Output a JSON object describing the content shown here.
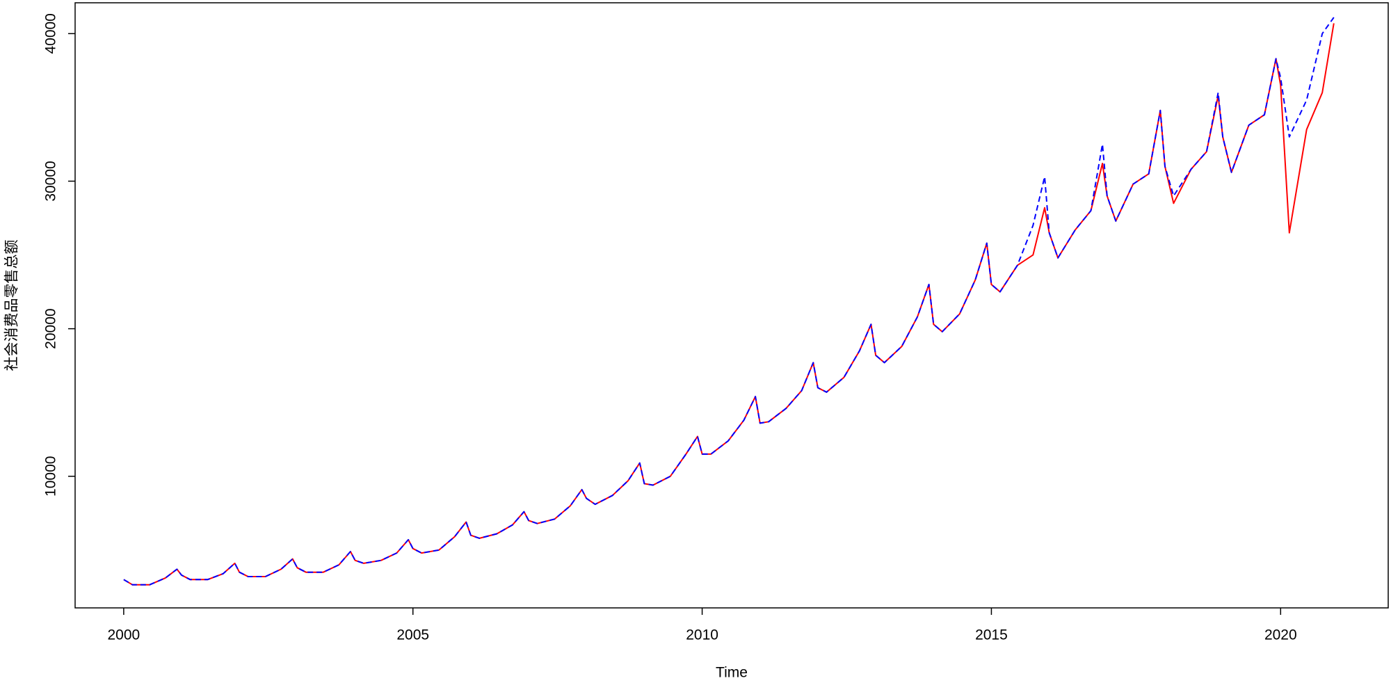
{
  "chart_data": {
    "type": "line",
    "x_label": "Time",
    "y_label": "社会消费品零售总额",
    "x": [
      2000,
      2000.15,
      2000.45,
      2000.72,
      2000.92,
      2001,
      2001.15,
      2001.45,
      2001.72,
      2001.92,
      2002,
      2002.15,
      2002.45,
      2002.72,
      2002.92,
      2003,
      2003.15,
      2003.45,
      2003.72,
      2003.92,
      2004,
      2004.15,
      2004.45,
      2004.72,
      2004.92,
      2005,
      2005.15,
      2005.45,
      2005.72,
      2005.92,
      2006,
      2006.15,
      2006.45,
      2006.72,
      2006.92,
      2007,
      2007.15,
      2007.45,
      2007.72,
      2007.92,
      2008,
      2008.15,
      2008.45,
      2008.72,
      2008.92,
      2009,
      2009.15,
      2009.45,
      2009.72,
      2009.92,
      2010,
      2010.15,
      2010.45,
      2010.72,
      2010.92,
      2011,
      2011.15,
      2011.45,
      2011.72,
      2011.92,
      2012,
      2012.15,
      2012.45,
      2012.72,
      2012.92,
      2013,
      2013.15,
      2013.45,
      2013.72,
      2013.92,
      2014,
      2014.15,
      2014.45,
      2014.72,
      2014.92,
      2015,
      2015.15,
      2015.45,
      2015.72,
      2015.92,
      2016,
      2016.15,
      2016.45,
      2016.72,
      2016.92,
      2017,
      2017.15,
      2017.45,
      2017.72,
      2017.92,
      2018,
      2018.15,
      2018.45,
      2018.72,
      2018.92,
      2019,
      2019.15,
      2019.45,
      2019.72,
      2019.92,
      2020,
      2020.15,
      2020.45,
      2020.72,
      2020.92
    ],
    "series": [
      {
        "color": "#ff0000",
        "dash": false,
        "values": [
          3000,
          2650,
          2650,
          3100,
          3700,
          3300,
          3000,
          3000,
          3400,
          4100,
          3500,
          3200,
          3200,
          3700,
          4400,
          3800,
          3500,
          3500,
          4000,
          4900,
          4300,
          4100,
          4300,
          4800,
          5700,
          5100,
          4800,
          5000,
          5900,
          6900,
          6000,
          5800,
          6100,
          6700,
          7600,
          7000,
          6800,
          7100,
          8000,
          9100,
          8500,
          8100,
          8700,
          9700,
          10900,
          9500,
          9400,
          10000,
          11500,
          12700,
          11500,
          11500,
          12400,
          13800,
          15400,
          13600,
          13700,
          14600,
          15800,
          17700,
          16000,
          15700,
          16700,
          18500,
          20300,
          18200,
          17700,
          18800,
          20800,
          23000,
          20300,
          19800,
          21000,
          23300,
          25800,
          23000,
          22500,
          24300,
          25000,
          28200,
          26500,
          24800,
          26700,
          28000,
          31200,
          29000,
          27300,
          29800,
          30500,
          34800,
          31000,
          28500,
          30800,
          32000,
          35800,
          33000,
          30600,
          33800,
          34500,
          38300,
          36500,
          26500,
          33500,
          36000,
          40700
        ]
      },
      {
        "color": "#0000ff",
        "dash": true,
        "values": [
          3000,
          2650,
          2650,
          3100,
          3700,
          3300,
          3000,
          3000,
          3400,
          4100,
          3500,
          3200,
          3200,
          3700,
          4400,
          3800,
          3500,
          3500,
          4000,
          4900,
          4300,
          4100,
          4300,
          4800,
          5700,
          5100,
          4800,
          5000,
          5900,
          6900,
          6000,
          5800,
          6100,
          6700,
          7600,
          7000,
          6800,
          7100,
          8000,
          9100,
          8500,
          8100,
          8700,
          9700,
          10900,
          9500,
          9400,
          10000,
          11500,
          12700,
          11500,
          11500,
          12400,
          13800,
          15400,
          13600,
          13700,
          14600,
          15800,
          17700,
          16000,
          15700,
          16700,
          18500,
          20300,
          18200,
          17700,
          18800,
          20800,
          23000,
          20300,
          19800,
          21000,
          23300,
          25800,
          23000,
          22500,
          24300,
          27000,
          30300,
          26500,
          24800,
          26700,
          28000,
          32500,
          29000,
          27300,
          29800,
          30500,
          34800,
          31000,
          29000,
          30800,
          32000,
          36000,
          33000,
          30600,
          33800,
          34500,
          38300,
          37000,
          33000,
          35500,
          40000,
          41100
        ]
      }
    ],
    "xlim": [
      1999.16,
      2021.86
    ],
    "xticks": [
      2000,
      2005,
      2010,
      2015,
      2020
    ],
    "ylim": [
      1080,
      42090
    ],
    "yticks": [
      10000,
      20000,
      30000,
      40000
    ],
    "grid": false
  }
}
